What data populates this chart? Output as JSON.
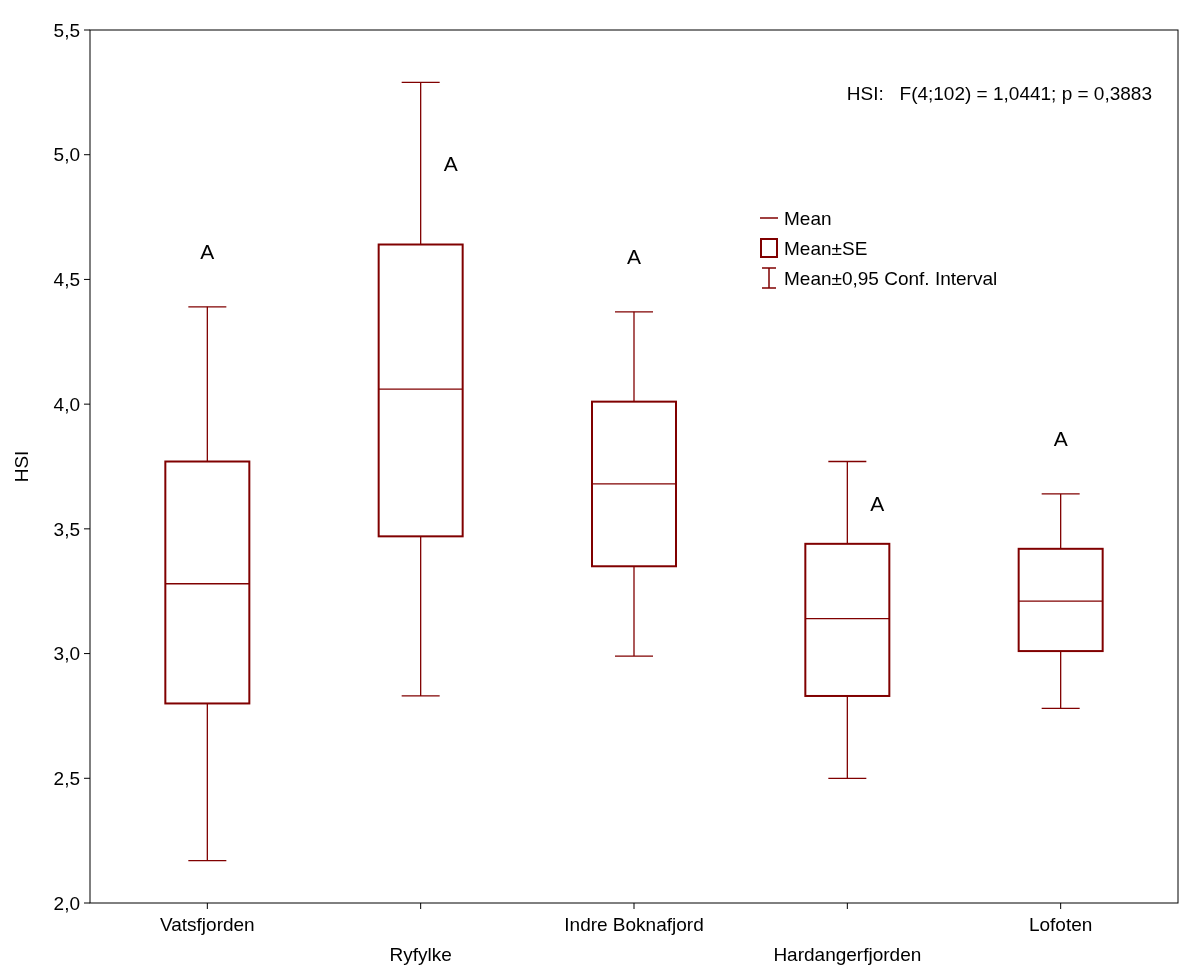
{
  "chart_data": {
    "type": "box",
    "ylabel": "HSI",
    "categories": [
      "Vatsfjorden",
      "Ryfylke",
      "Indre Boknafjord",
      "Hardangerfjorden",
      "Lofoten"
    ],
    "color": "#800000",
    "boxes": [
      {
        "low": 2.17,
        "q1": 2.8,
        "median": 3.28,
        "q3": 3.77,
        "high": 4.39
      },
      {
        "low": 2.83,
        "q1": 3.47,
        "median": 4.06,
        "q3": 4.64,
        "high": 5.29
      },
      {
        "low": 2.99,
        "q1": 3.35,
        "median": 3.68,
        "q3": 4.01,
        "high": 4.37
      },
      {
        "low": 2.5,
        "q1": 2.83,
        "median": 3.14,
        "q3": 3.44,
        "high": 3.77
      },
      {
        "low": 2.78,
        "q1": 3.01,
        "median": 3.21,
        "q3": 3.42,
        "high": 3.64
      }
    ],
    "ylim": [
      2,
      5.5
    ],
    "yticks": [
      {
        "value": 2,
        "label": "2,0"
      },
      {
        "value": 2.5,
        "label": "2,5"
      },
      {
        "value": 3,
        "label": "3,0"
      },
      {
        "value": 3.5,
        "label": "3,5"
      },
      {
        "value": 4,
        "label": "4,0"
      },
      {
        "value": 4.5,
        "label": "4,5"
      },
      {
        "value": 5,
        "label": "5,0"
      },
      {
        "value": 5.5,
        "label": "5,5"
      }
    ],
    "grid": false,
    "annotations": [
      "HSI:   F(4;102) = 1,0441; p = 0,3883",
      "Mean",
      "Mean±SE",
      "Mean±0,95 Conf. Interval",
      "A",
      "A",
      "A",
      "A",
      "A"
    ]
  }
}
